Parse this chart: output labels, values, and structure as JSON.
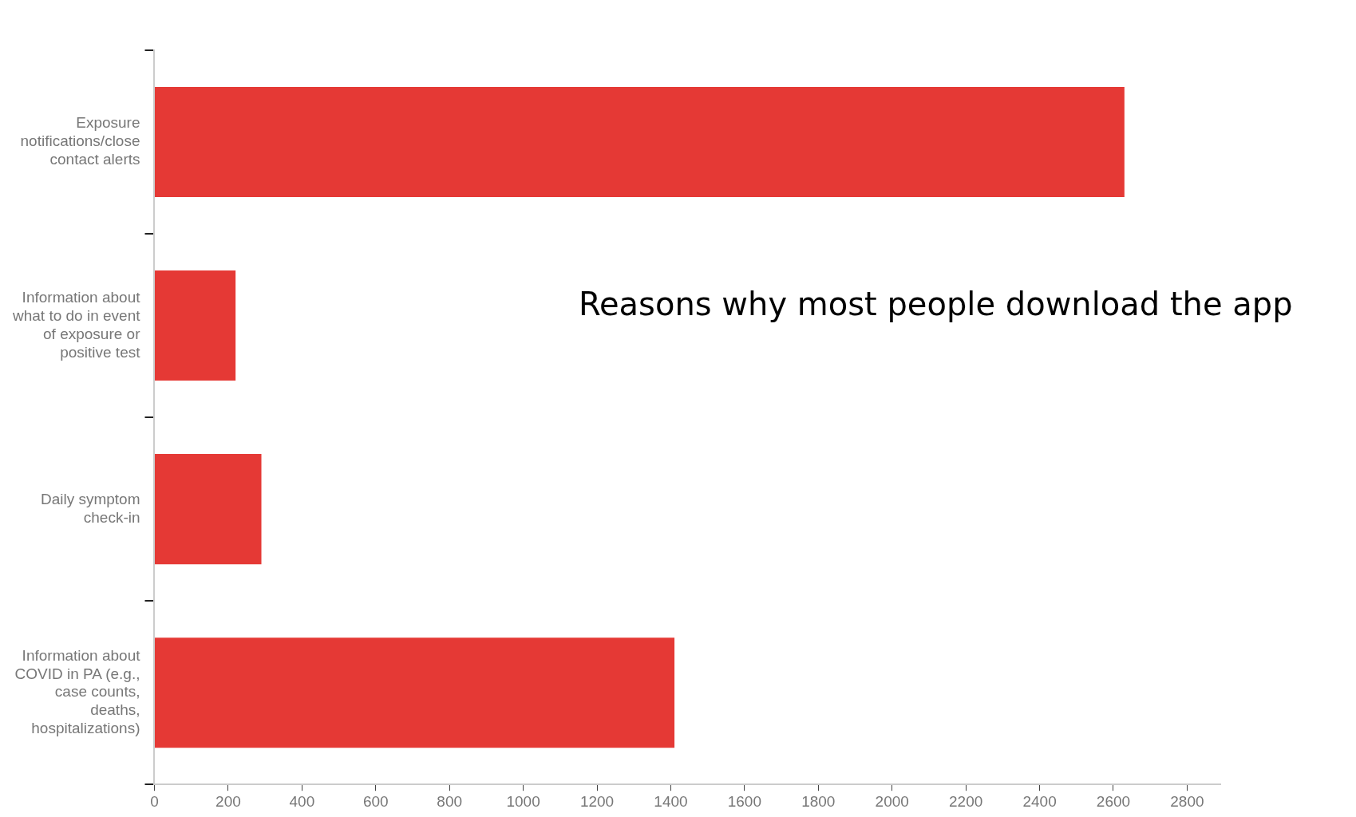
{
  "chart_data": {
    "type": "bar",
    "orientation": "horizontal",
    "title": "Reasons why most people download the app",
    "categories": [
      "Exposure notifications/close contact alerts",
      "Information about what to do in event of exposure or positive test",
      "Daily symptom check-in",
      "Information about COVID in PA (e.g., case counts, deaths, hospitalizations)"
    ],
    "values": [
      2630,
      220,
      290,
      1410
    ],
    "color": "#e53935",
    "xlim": [
      0,
      2890
    ],
    "xticks": [
      0,
      200,
      400,
      600,
      800,
      1000,
      1200,
      1400,
      1600,
      1800,
      2000,
      2200,
      2400,
      2600,
      2800
    ],
    "grid": false,
    "legend": false
  }
}
